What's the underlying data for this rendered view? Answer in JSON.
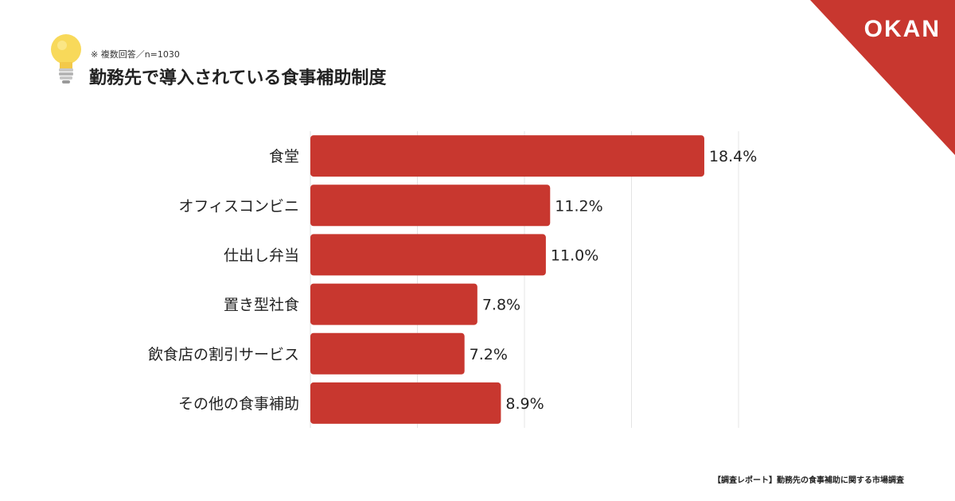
{
  "brand": {
    "logo": "OKAN",
    "accent_color": "#c8372f",
    "icon": "lightbulb-icon"
  },
  "header": {
    "note": "※ 複数回答／n=1030",
    "title": "勤務先で導入されている食事補助制度"
  },
  "footer": {
    "source": "【調査レポート】勤務先の食事補助に関する市場調査"
  },
  "chart_data": {
    "type": "bar",
    "orientation": "horizontal",
    "categories": [
      "食堂",
      "オフィスコンビニ",
      "仕出し弁当",
      "置き型社食",
      "飲食店の割引サービス",
      "その他の食事補助"
    ],
    "values": [
      18.4,
      11.2,
      11.0,
      7.8,
      7.2,
      8.9
    ],
    "value_labels": [
      "18.4%",
      "11.2%",
      "11.0%",
      "7.8%",
      "7.2%",
      "8.9%"
    ],
    "unit": "%",
    "xlim": [
      0,
      20
    ],
    "grid": true,
    "bar_color": "#c8372f"
  }
}
